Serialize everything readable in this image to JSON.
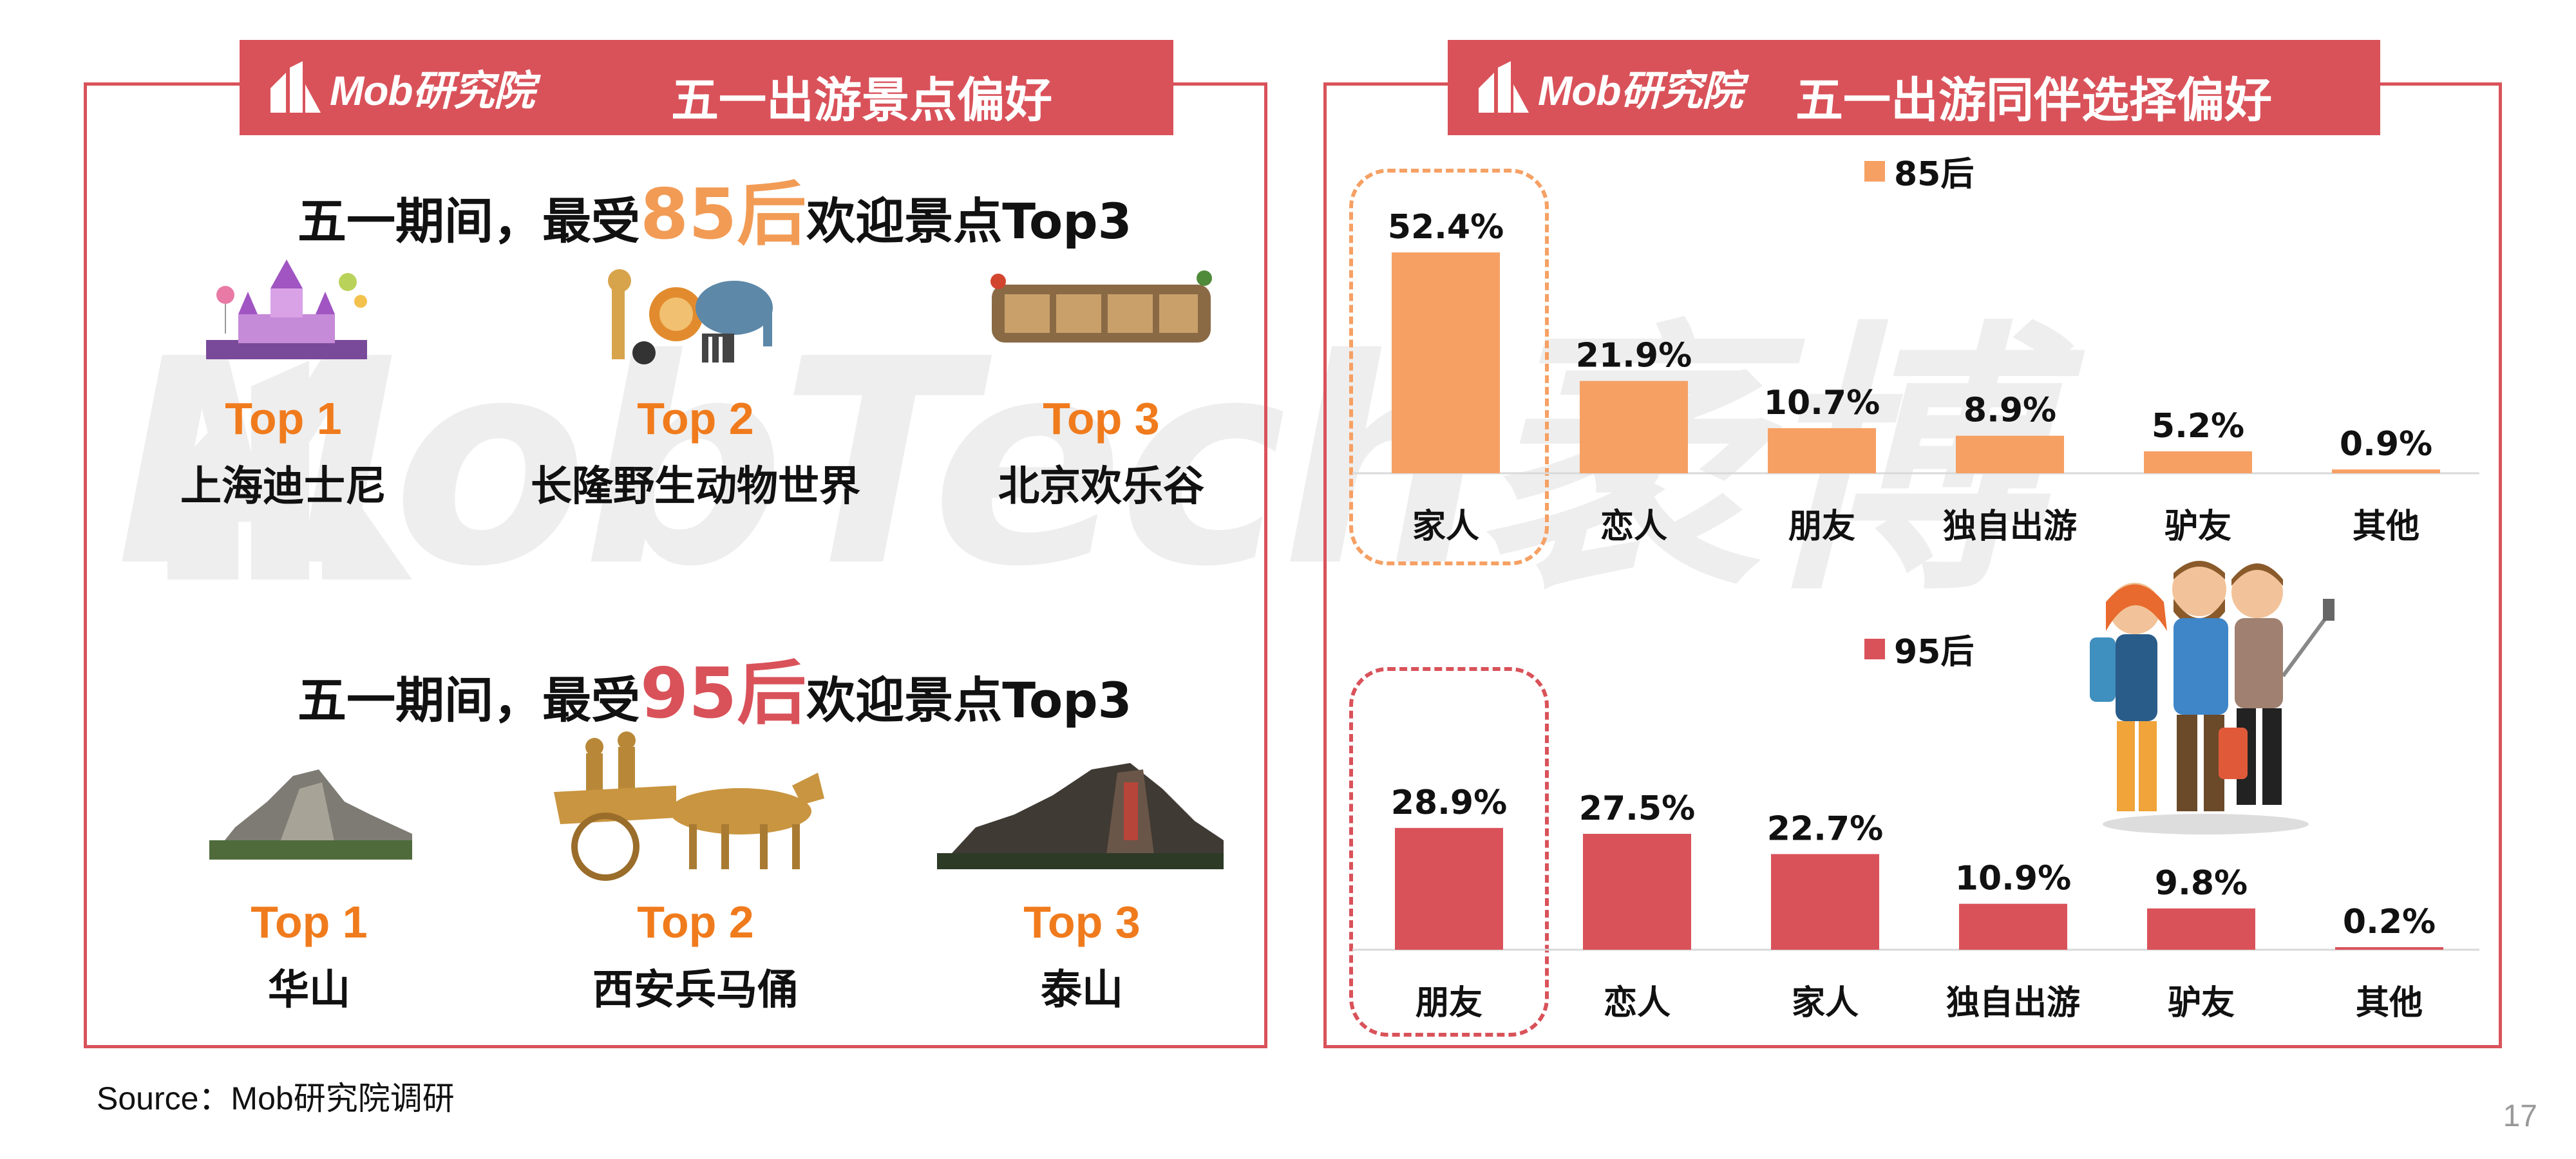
{
  "watermark": "MobTech袤博",
  "left_panel": {
    "brand": "Mob研究院",
    "title": "五一出游景点偏好",
    "section85": {
      "prefix": "五一期间，最受",
      "accent": "85后",
      "suffix": "欢迎景点Top3"
    },
    "section95": {
      "prefix": "五一期间，最受",
      "accent": "95后",
      "suffix": "欢迎景点Top3"
    },
    "spots85": [
      {
        "rank": "Top 1",
        "name": "上海迪士尼",
        "icon": "castle-icon"
      },
      {
        "rank": "Top 2",
        "name": "长隆野生动物世界",
        "icon": "zoo-animals-icon"
      },
      {
        "rank": "Top 3",
        "name": "北京欢乐谷",
        "icon": "happy-valley-sign-icon"
      }
    ],
    "spots95": [
      {
        "rank": "Top 1",
        "name": "华山",
        "icon": "mountain-icon"
      },
      {
        "rank": "Top 2",
        "name": "西安兵马俑",
        "icon": "terracotta-chariot-icon"
      },
      {
        "rank": "Top 3",
        "name": "泰山",
        "icon": "mountain-rock-icon"
      }
    ]
  },
  "right_panel": {
    "brand": "Mob研究院",
    "title": "五一出游同伴选择偏好"
  },
  "chart_data": [
    {
      "type": "bar",
      "series": [
        {
          "name": "85后",
          "values": [
            52.4,
            21.9,
            10.7,
            8.9,
            5.2,
            0.9
          ]
        }
      ],
      "categories": [
        "家人",
        "恋人",
        "朋友",
        "独自出游",
        "驴友",
        "其他"
      ],
      "value_labels": [
        "52.4%",
        "21.9%",
        "10.7%",
        "8.9%",
        "5.2%",
        "0.9%"
      ],
      "unit": "%",
      "color": "#f6a064",
      "highlight_index": 0,
      "ylim": [
        0,
        55
      ]
    },
    {
      "type": "bar",
      "series": [
        {
          "name": "95后",
          "values": [
            28.9,
            27.5,
            22.7,
            10.9,
            9.8,
            0.2
          ]
        }
      ],
      "categories": [
        "朋友",
        "恋人",
        "家人",
        "独自出游",
        "驴友",
        "其他"
      ],
      "value_labels": [
        "28.9%",
        "27.5%",
        "22.7%",
        "10.9%",
        "9.8%",
        "0.2%"
      ],
      "unit": "%",
      "color": "#d9525a",
      "highlight_index": 0,
      "ylim": [
        0,
        55
      ]
    }
  ],
  "footer": {
    "source": "Source：Mob研究院调研",
    "page": "17"
  },
  "colors": {
    "brand_red": "#d9525a",
    "orange": "#f6a064",
    "rank_orange": "#f07b1d"
  }
}
